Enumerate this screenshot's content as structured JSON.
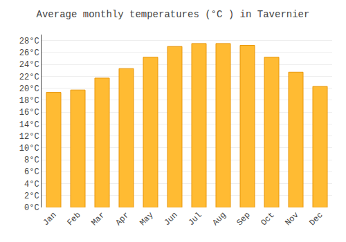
{
  "chart_data": {
    "type": "bar",
    "title": "Average monthly temperatures (°C ) in Tavernier",
    "categories": [
      "Jan",
      "Feb",
      "Mar",
      "Apr",
      "May",
      "Jun",
      "Jul",
      "Aug",
      "Sep",
      "Oct",
      "Nov",
      "Dec"
    ],
    "values": [
      19.3,
      19.7,
      21.7,
      23.3,
      25.2,
      27.0,
      27.5,
      27.5,
      27.2,
      25.2,
      22.7,
      20.3
    ],
    "color": "#FFBB33",
    "ylim": [
      0,
      29
    ],
    "yticks": [
      {
        "value": 0,
        "label": "0°C"
      },
      {
        "value": 2,
        "label": "2°C"
      },
      {
        "value": 4,
        "label": "4°C"
      },
      {
        "value": 6,
        "label": "6°C"
      },
      {
        "value": 8,
        "label": "8°C"
      },
      {
        "value": 10,
        "label": "10°C"
      },
      {
        "value": 12,
        "label": "12°C"
      },
      {
        "value": 14,
        "label": "14°C"
      },
      {
        "value": 16,
        "label": "16°C"
      },
      {
        "value": 18,
        "label": "18°C"
      },
      {
        "value": 20,
        "label": "20°C"
      },
      {
        "value": 22,
        "label": "22°C"
      },
      {
        "value": 24,
        "label": "24°C"
      },
      {
        "value": 26,
        "label": "26°C"
      },
      {
        "value": 28,
        "label": "28°C"
      }
    ],
    "grid": true
  }
}
